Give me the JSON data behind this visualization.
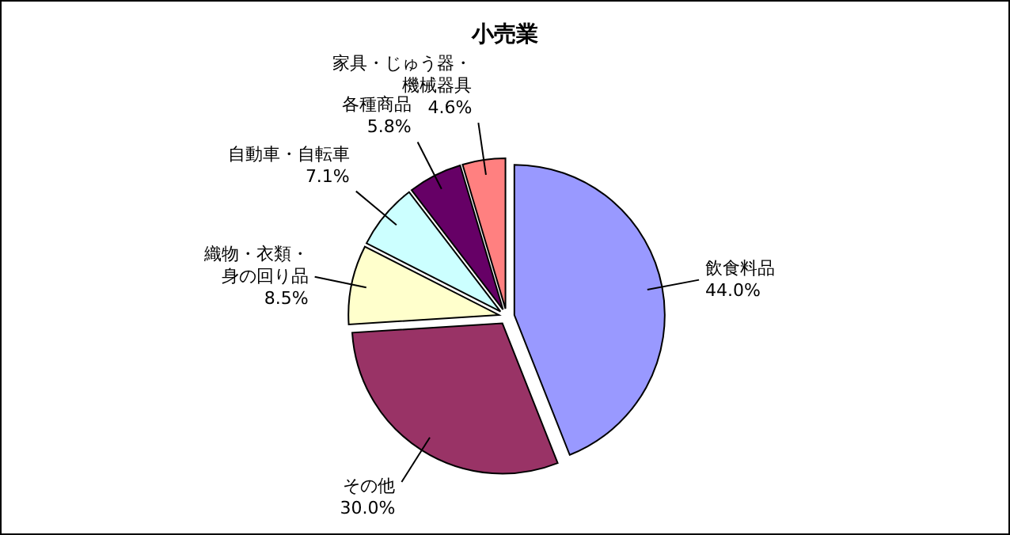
{
  "chart_data": {
    "type": "pie",
    "title": "小売業",
    "categories": [
      "飲食料品",
      "その他",
      "織物・衣類・身の回り品",
      "自動車・自転車",
      "各種商品",
      "家具・じゅう器・機械器具"
    ],
    "values": [
      44.0,
      30.0,
      8.5,
      7.1,
      5.8,
      4.6
    ],
    "value_labels": [
      "44.0%",
      "30.0%",
      "8.5%",
      "7.1%",
      "5.8%",
      "4.6%"
    ],
    "colors": [
      "#9999ff",
      "#993366",
      "#ffffcc",
      "#ccffff",
      "#660066",
      "#ff8080"
    ],
    "legend": false
  }
}
